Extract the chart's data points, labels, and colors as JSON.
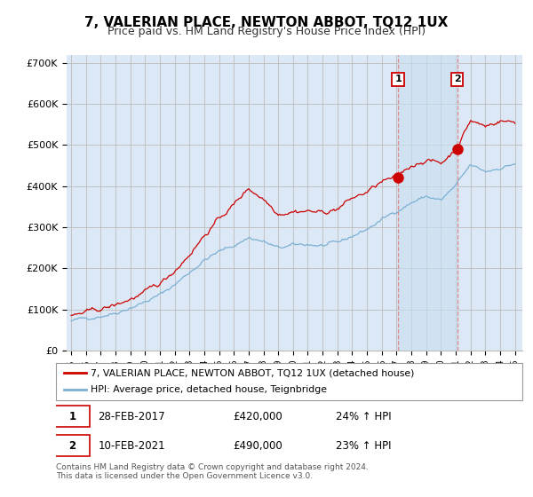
{
  "title": "7, VALERIAN PLACE, NEWTON ABBOT, TQ12 1UX",
  "subtitle": "Price paid vs. HM Land Registry's House Price Index (HPI)",
  "ylabel_ticks": [
    "£0",
    "£100K",
    "£200K",
    "£300K",
    "£400K",
    "£500K",
    "£600K",
    "£700K"
  ],
  "ytick_values": [
    0,
    100000,
    200000,
    300000,
    400000,
    500000,
    600000,
    700000
  ],
  "ylim": [
    0,
    720000
  ],
  "xlim_left": 1994.7,
  "xlim_right": 2025.5,
  "sale1_date_x": 2017.1,
  "sale1_price": 420000,
  "sale2_date_x": 2021.1,
  "sale2_price": 490000,
  "sale1_label": "1",
  "sale2_label": "2",
  "legend_line1": "7, VALERIAN PLACE, NEWTON ABBOT, TQ12 1UX (detached house)",
  "legend_line2": "HPI: Average price, detached house, Teignbridge",
  "table_row1": [
    "1",
    "28-FEB-2017",
    "£420,000",
    "24% ↑ HPI"
  ],
  "table_row2": [
    "2",
    "10-FEB-2021",
    "£490,000",
    "23% ↑ HPI"
  ],
  "footer": "Contains HM Land Registry data © Crown copyright and database right 2024.\nThis data is licensed under the Open Government Licence v3.0.",
  "color_red": "#cc0000",
  "color_blue": "#7ab0d4",
  "bg_color": "#dce8f5",
  "shade_color": "#c8dff0",
  "grid_color": "#bbbbbb",
  "title_fontsize": 11,
  "subtitle_fontsize": 9,
  "hpi_points_x": [
    1995,
    1996,
    1997,
    1998,
    1999,
    2000,
    2001,
    2002,
    2003,
    2004,
    2005,
    2006,
    2007,
    2008,
    2009,
    2010,
    2011,
    2012,
    2013,
    2014,
    2015,
    2016,
    2017,
    2018,
    2019,
    2020,
    2021,
    2022,
    2023,
    2024,
    2025
  ],
  "hpi_points_y": [
    72000,
    78000,
    85000,
    92000,
    105000,
    118000,
    135000,
    160000,
    190000,
    220000,
    240000,
    255000,
    275000,
    265000,
    248000,
    255000,
    258000,
    255000,
    260000,
    278000,
    295000,
    318000,
    340000,
    360000,
    375000,
    365000,
    400000,
    450000,
    435000,
    445000,
    455000
  ],
  "red_points_x": [
    1995,
    1996,
    1997,
    1998,
    1999,
    2000,
    2001,
    2002,
    2003,
    2004,
    2005,
    2006,
    2007,
    2008,
    2009,
    2010,
    2011,
    2012,
    2013,
    2014,
    2015,
    2016,
    2017,
    2018,
    2019,
    2020,
    2021,
    2022,
    2023,
    2024,
    2025
  ],
  "red_points_y": [
    85000,
    92000,
    100000,
    110000,
    125000,
    140000,
    162000,
    195000,
    235000,
    280000,
    320000,
    355000,
    395000,
    370000,
    335000,
    340000,
    340000,
    335000,
    345000,
    370000,
    385000,
    410000,
    420000,
    450000,
    465000,
    455000,
    490000,
    560000,
    545000,
    560000,
    555000
  ],
  "noise_seed": 42
}
